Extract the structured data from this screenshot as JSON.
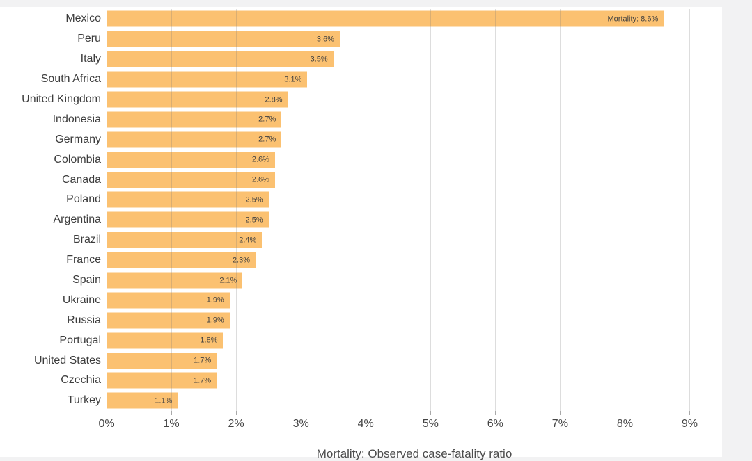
{
  "page": {
    "background": "#f2f2f3",
    "card_background": "#ffffff"
  },
  "chart_data": {
    "type": "bar",
    "orientation": "horizontal",
    "title": "",
    "xlabel": "Mortality: Observed case-fatality ratio",
    "ylabel": "",
    "xlim": [
      0,
      9.5
    ],
    "grid": true,
    "legend": false,
    "bar_color": "#fbc171",
    "gridline_color": "rgba(118,118,118,0.25)",
    "categories": [
      "Mexico",
      "Peru",
      "Italy",
      "South Africa",
      "United Kingdom",
      "Indonesia",
      "Germany",
      "Colombia",
      "Canada",
      "Poland",
      "Argentina",
      "Brazil",
      "France",
      "Spain",
      "Ukraine",
      "Russia",
      "Portugal",
      "United States",
      "Czechia",
      "Turkey"
    ],
    "values": [
      8.6,
      3.6,
      3.5,
      3.1,
      2.8,
      2.7,
      2.7,
      2.6,
      2.6,
      2.5,
      2.5,
      2.4,
      2.3,
      2.1,
      1.9,
      1.9,
      1.8,
      1.7,
      1.7,
      1.1
    ],
    "bar_labels": [
      "Mortality: 8.6%",
      "3.6%",
      "3.5%",
      "3.1%",
      "2.8%",
      "2.7%",
      "2.7%",
      "2.6%",
      "2.6%",
      "2.5%",
      "2.5%",
      "2.4%",
      "2.3%",
      "2.1%",
      "1.9%",
      "1.9%",
      "1.8%",
      "1.7%",
      "1.7%",
      "1.1%"
    ],
    "x_tick_values": [
      0,
      1,
      2,
      3,
      4,
      5,
      6,
      7,
      8,
      9
    ],
    "x_tick_labels": [
      "0%",
      "1%",
      "2%",
      "3%",
      "4%",
      "5%",
      "6%",
      "7%",
      "8%",
      "9%"
    ]
  }
}
